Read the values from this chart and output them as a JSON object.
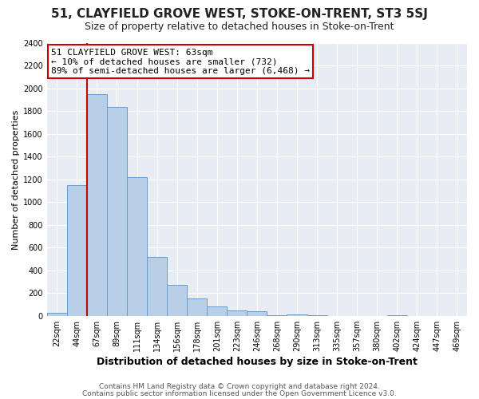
{
  "title": "51, CLAYFIELD GROVE WEST, STOKE-ON-TRENT, ST3 5SJ",
  "subtitle": "Size of property relative to detached houses in Stoke-on-Trent",
  "xlabel": "Distribution of detached houses by size in Stoke-on-Trent",
  "ylabel": "Number of detached properties",
  "bin_labels": [
    "22sqm",
    "44sqm",
    "67sqm",
    "89sqm",
    "111sqm",
    "134sqm",
    "156sqm",
    "178sqm",
    "201sqm",
    "223sqm",
    "246sqm",
    "268sqm",
    "290sqm",
    "313sqm",
    "335sqm",
    "357sqm",
    "380sqm",
    "402sqm",
    "424sqm",
    "447sqm",
    "469sqm"
  ],
  "bin_values": [
    25,
    1150,
    1950,
    1840,
    1220,
    520,
    275,
    155,
    85,
    50,
    40,
    5,
    10,
    5,
    2,
    2,
    1,
    5,
    1,
    1,
    1
  ],
  "bar_color": "#b8cfe8",
  "bar_edge_color": "#6b9cc8",
  "red_line_bin_index": 2,
  "annotation_title": "51 CLAYFIELD GROVE WEST: 63sqm",
  "annotation_line1": "← 10% of detached houses are smaller (732)",
  "annotation_line2": "89% of semi-detached houses are larger (6,468) →",
  "annotation_box_facecolor": "#ffffff",
  "annotation_box_edgecolor": "#cc0000",
  "footer_line1": "Contains HM Land Registry data © Crown copyright and database right 2024.",
  "footer_line2": "Contains public sector information licensed under the Open Government Licence v3.0.",
  "ylim": [
    0,
    2400
  ],
  "yticks": [
    0,
    200,
    400,
    600,
    800,
    1000,
    1200,
    1400,
    1600,
    1800,
    2000,
    2200,
    2400
  ],
  "fig_facecolor": "#ffffff",
  "ax_facecolor": "#e8edf4",
  "red_line_color": "#cc0000",
  "grid_color": "#ffffff",
  "title_fontsize": 11,
  "subtitle_fontsize": 9,
  "xlabel_fontsize": 9,
  "ylabel_fontsize": 8,
  "tick_fontsize": 7,
  "annotation_fontsize": 8,
  "footer_fontsize": 6.5
}
